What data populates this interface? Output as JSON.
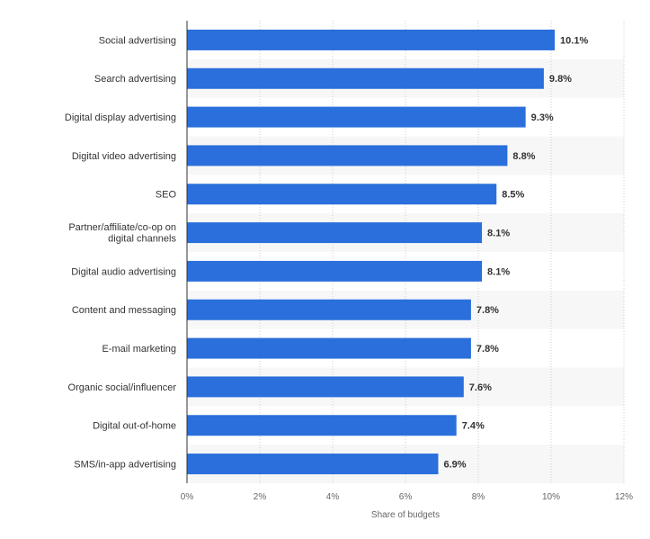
{
  "chart_data": {
    "type": "bar",
    "orientation": "horizontal",
    "categories": [
      "Social advertising",
      "Search advertising",
      "Digital display advertising",
      "Digital video advertising",
      "SEO",
      "Partner/affiliate/co-op on digital channels",
      "Digital audio advertising",
      "Content and messaging",
      "E-mail marketing",
      "Organic social/influencer",
      "Digital out-of-home",
      "SMS/in-app advertising"
    ],
    "values": [
      10.1,
      9.8,
      9.3,
      8.8,
      8.5,
      8.1,
      8.1,
      7.8,
      7.8,
      7.6,
      7.4,
      6.9
    ],
    "value_labels": [
      "10.1%",
      "9.8%",
      "9.3%",
      "8.8%",
      "8.5%",
      "8.1%",
      "8.1%",
      "7.8%",
      "7.8%",
      "7.6%",
      "7.4%",
      "6.9%"
    ],
    "xticks": [
      0,
      2,
      4,
      6,
      8,
      10,
      12
    ],
    "xtick_labels": [
      "0%",
      "2%",
      "4%",
      "6%",
      "8%",
      "10%",
      "12%"
    ],
    "xlim": [
      0,
      12
    ],
    "xlabel": "Share of budgets",
    "ylabel": "",
    "title": "",
    "grid": "vertical-dotted",
    "bar_color": "#2a6fdb",
    "band_color": "#f7f7f7"
  }
}
